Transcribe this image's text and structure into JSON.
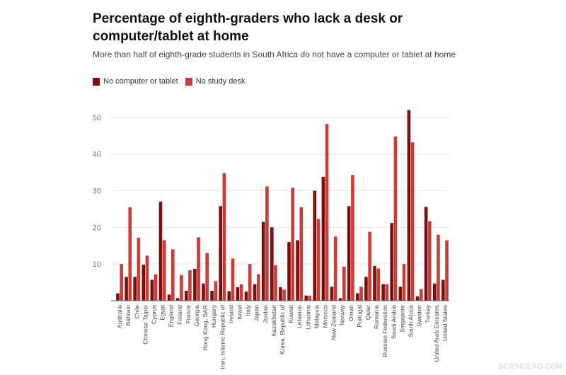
{
  "header": {
    "title": "Percentage of eighth-graders who lack a desk or computer/tablet at home",
    "subtitle": "More than half of eighth-grade students in South Africa do not have a computer or tablet at home"
  },
  "watermark": "SCIENCEAQ.COM",
  "colors": {
    "series1": "#7a0f0f",
    "series2": "#cc3b36",
    "grid": "#e4e4e4",
    "axis": "#666666",
    "text": "#555555"
  },
  "chart_data": {
    "type": "bar",
    "title": "Percentage of eighth-graders who lack a desk or computer/tablet at home",
    "subtitle": "More than half of eighth-grade students in South Africa do not have a computer or tablet at home",
    "xlabel": "",
    "ylabel": "",
    "ylim": [
      0,
      55
    ],
    "yticks": [
      10,
      20,
      30,
      40,
      50
    ],
    "grid": true,
    "legend": "top-left",
    "categories": [
      "Australia",
      "Bahrain",
      "Chile",
      "Chinese Taipei",
      "Cyprus",
      "Egypt",
      "England",
      "Finland",
      "France",
      "Georgia",
      "Hong Kong, SAR",
      "Hungary",
      "Iran, Islamic Republic of",
      "Ireland",
      "Israel",
      "Italy",
      "Japan",
      "Jordan",
      "Kazakhstan",
      "Korea, Republic of",
      "Kuwait",
      "Lebanon",
      "Lithuania",
      "Malaysia",
      "Morocco",
      "New Zealand",
      "Norway",
      "Oman",
      "Portugal",
      "Qatar",
      "Romania",
      "Russian Federation",
      "Saudi Arabia",
      "Singapore",
      "South Africa",
      "Sweden",
      "Turkey",
      "United Arab Emirates",
      "United States"
    ],
    "series": [
      {
        "name": "No computer or tablet",
        "color": "#7a0f0f",
        "values": [
          2,
          6.5,
          6.5,
          9.8,
          5.7,
          27,
          1.7,
          0.7,
          2.7,
          8.7,
          4.7,
          2.7,
          25.8,
          2.6,
          3.7,
          2.5,
          4.5,
          21.5,
          20,
          3.7,
          16,
          16.5,
          1.4,
          30,
          33.8,
          3.8,
          0.7,
          25.8,
          2,
          6.5,
          9.5,
          4.5,
          21.2,
          3.8,
          52,
          1.2,
          25.6,
          4.7,
          5.7
        ]
      },
      {
        "name": "No study desk",
        "color": "#cc3b36",
        "values": [
          10,
          25.5,
          17.2,
          12.3,
          7.2,
          16.5,
          14,
          7,
          8.3,
          17.3,
          13,
          5.3,
          34.8,
          11.5,
          4.5,
          10,
          7.2,
          31.2,
          9.7,
          3,
          30.8,
          25.5,
          1.4,
          22.3,
          48.2,
          17.5,
          9.3,
          34.3,
          3.8,
          18.8,
          8.8,
          4.5,
          44.8,
          10,
          43.2,
          3.2,
          21.7,
          18,
          16.5
        ]
      }
    ]
  }
}
